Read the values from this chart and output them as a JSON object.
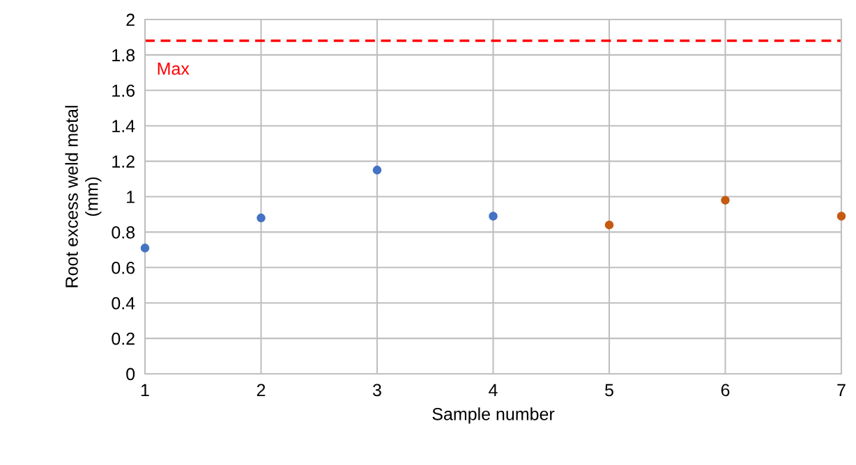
{
  "chart_data": {
    "type": "scatter",
    "xlabel": "Sample number",
    "ylabel": "Root excess weld metal\n(mm)",
    "series": [
      {
        "color": "#4472c4",
        "x": [
          1,
          2,
          3,
          4
        ],
        "values": [
          0.71,
          0.88,
          1.15,
          0.89
        ]
      },
      {
        "color": "#c55a11",
        "x": [
          5,
          6,
          7
        ],
        "values": [
          0.84,
          0.98,
          0.89
        ]
      }
    ],
    "xlim": [
      1,
      7
    ],
    "xticks": [
      1,
      2,
      3,
      4,
      5,
      6,
      7
    ],
    "ylim": [
      0,
      2
    ],
    "yticks": [
      0,
      0.2,
      0.4,
      0.6,
      0.8,
      1,
      1.2,
      1.4,
      1.6,
      1.8,
      2
    ],
    "ref_lines": [
      {
        "axis": "y",
        "value": 1.88,
        "label": "Max",
        "color": "#ff0000",
        "line_style": "dashed"
      }
    ],
    "grid": true,
    "marker": "circle"
  }
}
